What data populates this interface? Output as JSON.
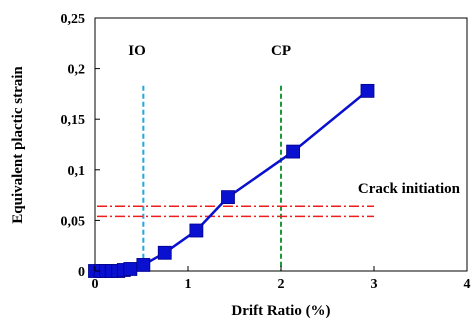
{
  "chart_data": {
    "type": "line",
    "xlabel": "Drift Ratio (%)",
    "ylabel": "Equivalent plactic strain",
    "xlim": [
      0,
      4
    ],
    "ylim": [
      0,
      0.25
    ],
    "xticks": [
      "0",
      "1",
      "2",
      "3",
      "4"
    ],
    "yticks": [
      "0",
      "0,05",
      "0,1",
      "0,15",
      "0,2",
      "0,25"
    ],
    "grid": false,
    "series": [
      {
        "color": "#0a10d0",
        "marker": "square",
        "x": [
          0.0,
          0.06,
          0.12,
          0.18,
          0.25,
          0.31,
          0.38,
          0.52,
          0.75,
          1.09,
          1.43,
          2.13,
          2.93
        ],
        "y": [
          0.0,
          0.0,
          0.0,
          0.0,
          0.0,
          0.001,
          0.002,
          0.006,
          0.018,
          0.04,
          0.073,
          0.118,
          0.178
        ]
      }
    ],
    "annotations": {
      "io": {
        "label": "IO",
        "x": 0.52,
        "color": "#1fa8e0",
        "style": "dashed"
      },
      "cp": {
        "label": "CP",
        "x": 2.0,
        "color": "#1c9a3a",
        "style": "dashed"
      },
      "crack": {
        "label": "Crack initiation",
        "y_values": [
          0.054,
          0.064
        ],
        "color": "#ee1c1c",
        "style": "dash-dot"
      }
    }
  }
}
